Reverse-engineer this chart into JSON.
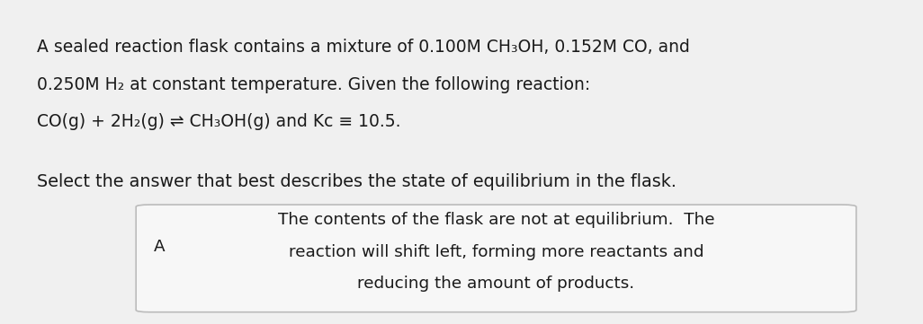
{
  "background_color": "#f0f0f0",
  "top_bar_color": "#cc3333",
  "top_bar_height": 0.018,
  "para1_lines": [
    "A sealed reaction flask contains a mixture of 0.100M CH₃OH, 0.152M CO, and",
    "0.250M H₂ at constant temperature. Given the following reaction:",
    "CO(g) + 2H₂(g) ⇌ CH₃OH(g) and Kc ≡ 10.5."
  ],
  "para2_line": "Select the answer that best describes the state of equilibrium in the flask.",
  "box_label": "A",
  "box_lines": [
    "The contents of the flask are not at equilibrium.  The",
    "reaction will shift left, forming more reactants and",
    "reducing the amount of products."
  ],
  "text_color": "#1a1a1a",
  "box_bg_color": "#f7f7f7",
  "box_border_color": "#bbbbbb",
  "font_size_para": 13.5,
  "font_size_box": 13.2,
  "font_size_select": 13.8
}
